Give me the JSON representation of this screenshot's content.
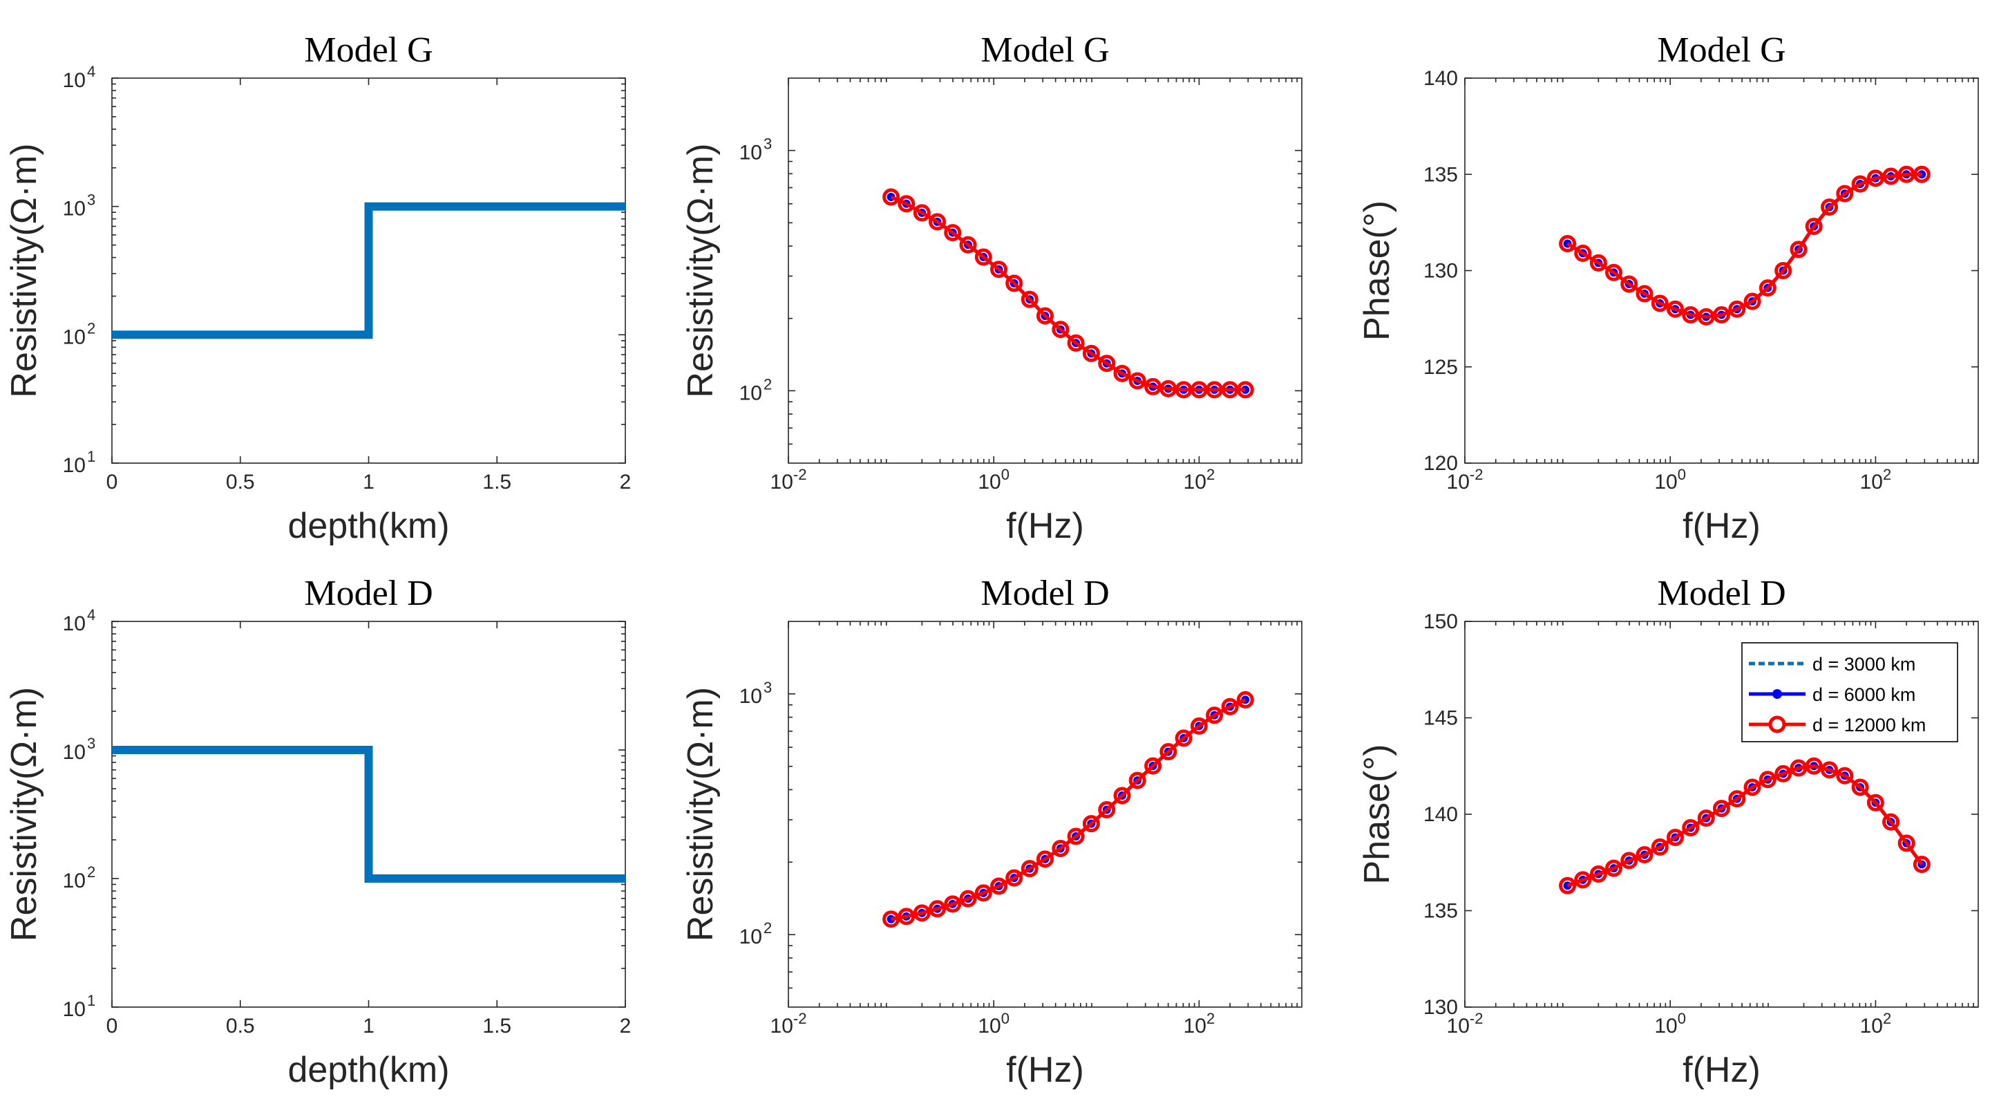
{
  "colors": {
    "model": "#0072BD",
    "d3000": "#0072BD",
    "d6000": "#0000FF",
    "d12000": "#FF0000",
    "axis": "#262626"
  },
  "chart_data": [
    {
      "type": "line",
      "title": "Model G",
      "xlabel": "depth(km)",
      "ylabel": "Resistivity(Ω·m)",
      "xscale": "linear",
      "yscale": "log",
      "xlim": [
        0,
        2
      ],
      "ylim": [
        10,
        10000
      ],
      "xticks": [
        {
          "v": 0,
          "t": "0"
        },
        {
          "v": 0.5,
          "t": "0.5"
        },
        {
          "v": 1,
          "t": "1"
        },
        {
          "v": 1.5,
          "t": "1.5"
        },
        {
          "v": 2,
          "t": "2"
        }
      ],
      "yticks": [
        {
          "v": 10,
          "b": "10",
          "e": "1"
        },
        {
          "v": 100,
          "b": "10",
          "e": "2"
        },
        {
          "v": 1000,
          "b": "10",
          "e": "3"
        },
        {
          "v": 10000,
          "b": "10",
          "e": "4"
        }
      ],
      "series": [
        {
          "name": "model",
          "style": "model",
          "x": [
            0,
            1,
            1,
            2
          ],
          "y": [
            100,
            100,
            1000,
            1000
          ]
        }
      ]
    },
    {
      "type": "line",
      "title": "Model G",
      "xlabel": "f(Hz)",
      "ylabel": "Resistivity(Ω·m)",
      "xscale": "log",
      "yscale": "log",
      "xlim": [
        0.01,
        1000
      ],
      "ylim": [
        50,
        2000
      ],
      "xticks": [
        {
          "v": 0.01,
          "b": "10",
          "e": "-2"
        },
        {
          "v": 1,
          "b": "10",
          "e": "0"
        },
        {
          "v": 100,
          "b": "10",
          "e": "2"
        }
      ],
      "yticks": [
        {
          "v": 100,
          "b": "10",
          "e": "2"
        },
        {
          "v": 1000,
          "b": "10",
          "e": "3"
        }
      ],
      "x": [
        0.1,
        0.141,
        0.2,
        0.282,
        0.398,
        0.562,
        0.794,
        1.12,
        1.58,
        2.24,
        3.16,
        4.47,
        6.31,
        8.91,
        12.6,
        17.8,
        25.1,
        35.5,
        50.1,
        70.8,
        100,
        141,
        200,
        282
      ],
      "series": [
        {
          "name": "d = 3000 km",
          "style": "d3000",
          "y": [
            640,
            600,
            550,
            505,
            455,
            405,
            360,
            320,
            280,
            240,
            205,
            180,
            158,
            143,
            130,
            118,
            110,
            104,
            102,
            101,
            101,
            101,
            101,
            101
          ]
        },
        {
          "name": "d = 6000 km",
          "style": "d6000",
          "y": [
            640,
            600,
            550,
            505,
            455,
            405,
            360,
            320,
            280,
            240,
            205,
            180,
            158,
            143,
            130,
            118,
            110,
            104,
            102,
            101,
            101,
            101,
            101,
            101
          ]
        },
        {
          "name": "d = 12000 km",
          "style": "d12000",
          "y": [
            640,
            600,
            550,
            505,
            455,
            405,
            360,
            320,
            280,
            240,
            205,
            180,
            158,
            143,
            130,
            118,
            110,
            104,
            102,
            101,
            101,
            101,
            101,
            101
          ]
        }
      ]
    },
    {
      "type": "line",
      "title": "Model G",
      "xlabel": "f(Hz)",
      "ylabel": "Phase(°)",
      "xscale": "log",
      "yscale": "linear",
      "xlim": [
        0.01,
        1000
      ],
      "ylim": [
        120,
        140
      ],
      "xticks": [
        {
          "v": 0.01,
          "b": "10",
          "e": "-2"
        },
        {
          "v": 1,
          "b": "10",
          "e": "0"
        },
        {
          "v": 100,
          "b": "10",
          "e": "2"
        }
      ],
      "yticks": [
        {
          "v": 120,
          "t": "120"
        },
        {
          "v": 125,
          "t": "125"
        },
        {
          "v": 130,
          "t": "130"
        },
        {
          "v": 135,
          "t": "135"
        },
        {
          "v": 140,
          "t": "140"
        }
      ],
      "x": [
        0.1,
        0.141,
        0.2,
        0.282,
        0.398,
        0.562,
        0.794,
        1.12,
        1.58,
        2.24,
        3.16,
        4.47,
        6.31,
        8.91,
        12.6,
        17.8,
        25.1,
        35.5,
        50.1,
        70.8,
        100,
        141,
        200,
        282
      ],
      "series": [
        {
          "name": "d = 3000 km",
          "style": "d3000",
          "y": [
            131.4,
            130.9,
            130.4,
            129.9,
            129.3,
            128.8,
            128.3,
            128.0,
            127.7,
            127.6,
            127.7,
            128.0,
            128.4,
            129.1,
            130.0,
            131.1,
            132.3,
            133.3,
            134.0,
            134.5,
            134.8,
            134.9,
            135.0,
            135.0
          ]
        },
        {
          "name": "d = 6000 km",
          "style": "d6000",
          "y": [
            131.4,
            130.9,
            130.4,
            129.9,
            129.3,
            128.8,
            128.3,
            128.0,
            127.7,
            127.6,
            127.7,
            128.0,
            128.4,
            129.1,
            130.0,
            131.1,
            132.3,
            133.3,
            134.0,
            134.5,
            134.8,
            134.9,
            135.0,
            135.0
          ]
        },
        {
          "name": "d = 12000 km",
          "style": "d12000",
          "y": [
            131.4,
            130.9,
            130.4,
            129.9,
            129.3,
            128.8,
            128.3,
            128.0,
            127.7,
            127.6,
            127.7,
            128.0,
            128.4,
            129.1,
            130.0,
            131.1,
            132.3,
            133.3,
            134.0,
            134.5,
            134.8,
            134.9,
            135.0,
            135.0
          ]
        }
      ]
    },
    {
      "type": "line",
      "title": "Model D",
      "xlabel": "depth(km)",
      "ylabel": "Resistivity(Ω·m)",
      "xscale": "linear",
      "yscale": "log",
      "xlim": [
        0,
        2
      ],
      "ylim": [
        10,
        10000
      ],
      "xticks": [
        {
          "v": 0,
          "t": "0"
        },
        {
          "v": 0.5,
          "t": "0.5"
        },
        {
          "v": 1,
          "t": "1"
        },
        {
          "v": 1.5,
          "t": "1.5"
        },
        {
          "v": 2,
          "t": "2"
        }
      ],
      "yticks": [
        {
          "v": 10,
          "b": "10",
          "e": "1"
        },
        {
          "v": 100,
          "b": "10",
          "e": "2"
        },
        {
          "v": 1000,
          "b": "10",
          "e": "3"
        },
        {
          "v": 10000,
          "b": "10",
          "e": "4"
        }
      ],
      "series": [
        {
          "name": "model",
          "style": "model",
          "x": [
            0,
            1,
            1,
            2
          ],
          "y": [
            1000,
            1000,
            100,
            100
          ]
        }
      ]
    },
    {
      "type": "line",
      "title": "Model D",
      "xlabel": "f(Hz)",
      "ylabel": "Resistivity(Ω·m)",
      "xscale": "log",
      "yscale": "log",
      "xlim": [
        0.01,
        1000
      ],
      "ylim": [
        50,
        2000
      ],
      "xticks": [
        {
          "v": 0.01,
          "b": "10",
          "e": "-2"
        },
        {
          "v": 1,
          "b": "10",
          "e": "0"
        },
        {
          "v": 100,
          "b": "10",
          "e": "2"
        }
      ],
      "yticks": [
        {
          "v": 100,
          "b": "10",
          "e": "2"
        },
        {
          "v": 1000,
          "b": "10",
          "e": "3"
        }
      ],
      "x": [
        0.1,
        0.141,
        0.2,
        0.282,
        0.398,
        0.562,
        0.794,
        1.12,
        1.58,
        2.24,
        3.16,
        4.47,
        6.31,
        8.91,
        12.6,
        17.8,
        25.1,
        35.5,
        50.1,
        70.8,
        100,
        141,
        200,
        282
      ],
      "series": [
        {
          "name": "d = 3000 km",
          "style": "d3000",
          "y": [
            116,
            119,
            123,
            128,
            134,
            141,
            149,
            159,
            172,
            188,
            206,
            228,
            256,
            289,
            330,
            378,
            437,
            502,
            575,
            655,
            735,
            815,
            885,
            945
          ]
        },
        {
          "name": "d = 6000 km",
          "style": "d6000",
          "y": [
            116,
            119,
            123,
            128,
            134,
            141,
            149,
            159,
            172,
            188,
            206,
            228,
            256,
            289,
            330,
            378,
            437,
            502,
            575,
            655,
            735,
            815,
            885,
            945
          ]
        },
        {
          "name": "d = 12000 km",
          "style": "d12000",
          "y": [
            116,
            119,
            123,
            128,
            134,
            141,
            149,
            159,
            172,
            188,
            206,
            228,
            256,
            289,
            330,
            378,
            437,
            502,
            575,
            655,
            735,
            815,
            885,
            945
          ]
        }
      ]
    },
    {
      "type": "line",
      "title": "Model D",
      "xlabel": "f(Hz)",
      "ylabel": "Phase(°)",
      "xscale": "log",
      "yscale": "linear",
      "xlim": [
        0.01,
        1000
      ],
      "ylim": [
        130,
        150
      ],
      "xticks": [
        {
          "v": 0.01,
          "b": "10",
          "e": "-2"
        },
        {
          "v": 1,
          "b": "10",
          "e": "0"
        },
        {
          "v": 100,
          "b": "10",
          "e": "2"
        }
      ],
      "yticks": [
        {
          "v": 130,
          "t": "130"
        },
        {
          "v": 135,
          "t": "135"
        },
        {
          "v": 140,
          "t": "140"
        },
        {
          "v": 145,
          "t": "145"
        },
        {
          "v": 150,
          "t": "150"
        }
      ],
      "x": [
        0.1,
        0.141,
        0.2,
        0.282,
        0.398,
        0.562,
        0.794,
        1.12,
        1.58,
        2.24,
        3.16,
        4.47,
        6.31,
        8.91,
        12.6,
        17.8,
        25.1,
        35.5,
        50.1,
        70.8,
        100,
        141,
        200,
        282
      ],
      "series": [
        {
          "name": "d = 3000 km",
          "style": "d3000",
          "y": [
            136.3,
            136.6,
            136.9,
            137.2,
            137.6,
            137.9,
            138.3,
            138.8,
            139.3,
            139.8,
            140.3,
            140.8,
            141.4,
            141.8,
            142.1,
            142.4,
            142.5,
            142.3,
            142.0,
            141.4,
            140.6,
            139.6,
            138.5,
            137.4
          ]
        },
        {
          "name": "d = 6000 km",
          "style": "d6000",
          "y": [
            136.3,
            136.6,
            136.9,
            137.2,
            137.6,
            137.9,
            138.3,
            138.8,
            139.3,
            139.8,
            140.3,
            140.8,
            141.4,
            141.8,
            142.1,
            142.4,
            142.5,
            142.3,
            142.0,
            141.4,
            140.6,
            139.6,
            138.5,
            137.4
          ]
        },
        {
          "name": "d = 12000 km",
          "style": "d12000",
          "y": [
            136.3,
            136.6,
            136.9,
            137.2,
            137.6,
            137.9,
            138.3,
            138.8,
            139.3,
            139.8,
            140.3,
            140.8,
            141.4,
            141.8,
            142.1,
            142.4,
            142.5,
            142.3,
            142.0,
            141.4,
            140.6,
            139.6,
            138.5,
            137.4
          ]
        }
      ],
      "legend": {
        "position": "top-right",
        "entries": [
          "d = 3000 km",
          "d = 6000 km",
          "d = 12000 km"
        ]
      }
    }
  ]
}
